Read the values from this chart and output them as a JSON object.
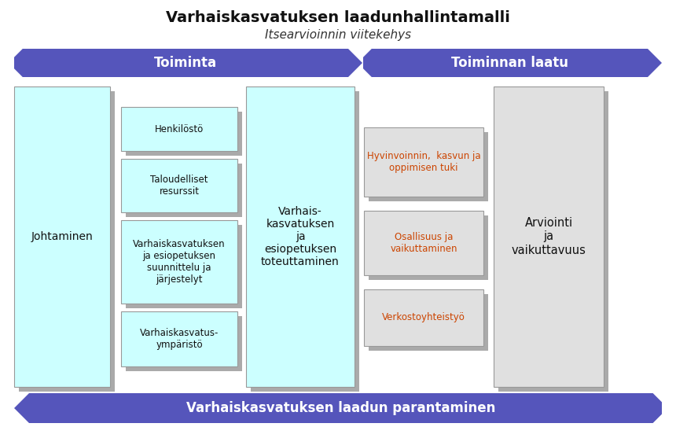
{
  "title": "Varhaiskasvatuksen laadunhallintamalli",
  "subtitle": "Itsearvioinnin viitekehys",
  "arrow_top_label1": "Toiminta",
  "arrow_top_label2": "Toiminnan laatu",
  "arrow_bottom_label": "Varhaiskasvatuksen laadun parantaminen",
  "arrow_color": "#5555bb",
  "arrow_text_color": "#ffffff",
  "box_cyan_color": "#ccffff",
  "box_gray_color": "#e0e0e0",
  "box_border_color": "#999999",
  "box_shadow_color": "#aaaaaa",
  "johtaminen_text": "Johtaminen",
  "center_box_text": "Varhais-\nkasvatuksen\nja\nesiopetuksen\ntoteuttaminen",
  "arviointi_text": "Arviointi\nja\nvaikuttavuus",
  "left_boxes": [
    "Henkilöstö",
    "Taloudelliset\nresurssit",
    "Varhaiskasvatuksen\nja esiopetuksen\nsuunnittelu ja\njärjestelyt",
    "Varhaiskasvatus-\nympäristö"
  ],
  "right_boxes": [
    "Hyvinvoinnin,  kasvun ja\noppimisen tuki",
    "Osallisuus ja\nvaikuttaminen",
    "Verkostoyhteistyö"
  ],
  "right_box_text_color": "#cc4400",
  "background_color": "#ffffff",
  "title_fontsize": 14,
  "subtitle_fontsize": 11,
  "arrow_fontsize": 12,
  "body_fontsize": 9,
  "fig_w": 8.6,
  "fig_h": 5.57,
  "dpi": 100
}
